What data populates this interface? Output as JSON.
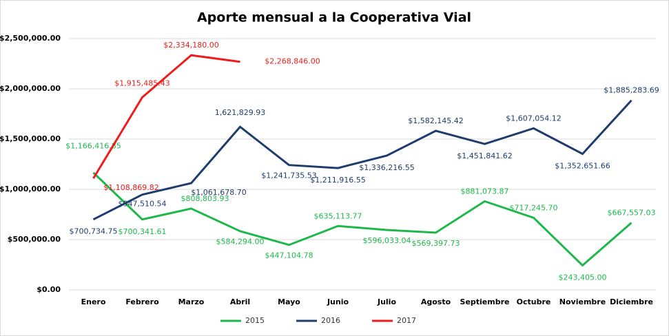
{
  "chart_data": {
    "type": "line",
    "title": "Aporte mensual a la Cooperativa Vial",
    "categories": [
      "Enero",
      "Febrero",
      "Marzo",
      "Abril",
      "Mayo",
      "Junio",
      "Julio",
      "Agosto",
      "Septiembre",
      "Octubre",
      "Noviembre",
      "Diciembre"
    ],
    "series": [
      {
        "name": "2015",
        "color": "#1db74b",
        "values": [
          1166416.85,
          700341.61,
          808803.93,
          584294.0,
          447104.78,
          635113.77,
          596033.04,
          569397.73,
          881073.87,
          717245.7,
          243405.0,
          667557.03
        ],
        "value_labels": [
          "$1,166,416.85",
          "$700,341.61",
          "$808,803.93",
          "$584,294.00",
          "$447,104.78",
          "$635,113.77",
          "$596,033.04",
          "$569,397.73",
          "$881,073.87",
          "$717,245.70",
          "$243,405.00",
          "$667,557.03"
        ]
      },
      {
        "name": "2016",
        "color": "#1f3c6e",
        "values": [
          700734.75,
          947510.54,
          1061678.7,
          1621829.93,
          1241735.53,
          1211916.55,
          1336216.55,
          1582145.42,
          1451841.62,
          1607054.12,
          1352651.66,
          1885283.69
        ],
        "value_labels": [
          "$700,734.75",
          "$947,510.54",
          "$1,061,678.70",
          "1,621,829.93",
          "$1,241,735.53",
          "$1,211,916.55",
          "$1,336,216.55",
          "$1,582,145.42",
          "$1,451,841.62",
          "$1,607,054.12",
          "$1,352,651.66",
          "$1,885,283.69"
        ]
      },
      {
        "name": "2017",
        "color": "#ee1c1c",
        "values": [
          1108869.82,
          1915485.43,
          2334180.0,
          2268846.0,
          null,
          null,
          null,
          null,
          null,
          null,
          null,
          null
        ],
        "value_labels": [
          "$1,108,869.82",
          "$1,915,485.43",
          "$2,334,180.00",
          "$2,268,846.00",
          null,
          null,
          null,
          null,
          null,
          null,
          null,
          null
        ]
      }
    ],
    "ylim": [
      0,
      2500000
    ],
    "yticks": [
      {
        "value": 0,
        "label": "$0.00"
      },
      {
        "value": 500000,
        "label": "$500,000.00"
      },
      {
        "value": 1000000,
        "label": "$1,000,000.00"
      },
      {
        "value": 1500000,
        "label": "$1,500,000.00"
      },
      {
        "value": 2000000,
        "label": "$2,000,000.00"
      },
      {
        "value": 2500000,
        "label": "$2,500,000.00"
      }
    ],
    "grid": true,
    "legend": "bottom"
  }
}
